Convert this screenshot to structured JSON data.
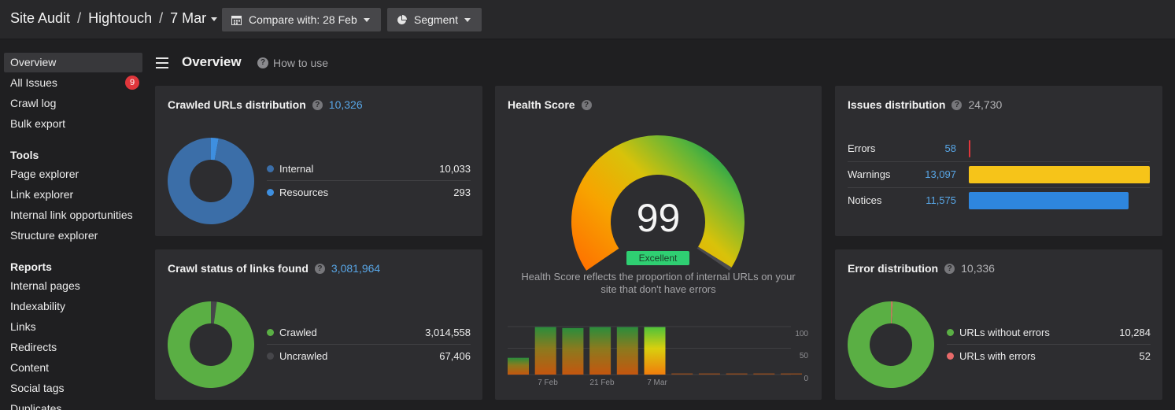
{
  "breadcrumb": {
    "site_audit": "Site Audit",
    "sep1": "/",
    "project": "Hightouch",
    "sep2": "/",
    "date": "7 Mar"
  },
  "toolbar": {
    "compare_label": "Compare with: 28 Feb",
    "segment_label": "Segment"
  },
  "sidebar": {
    "items": [
      {
        "label": "Overview",
        "active": true
      },
      {
        "label": "All Issues",
        "badge": "9"
      },
      {
        "label": "Crawl log"
      },
      {
        "label": "Bulk export"
      }
    ],
    "tools_heading": "Tools",
    "tools": [
      "Page explorer",
      "Link explorer",
      "Internal link opportunities",
      "Structure explorer"
    ],
    "reports_heading": "Reports",
    "reports": [
      "Internal pages",
      "Indexability",
      "Links",
      "Redirects",
      "Content",
      "Social tags",
      "Duplicates"
    ]
  },
  "page": {
    "title": "Overview",
    "how_to_use": "How to use"
  },
  "crawled_urls": {
    "title": "Crawled URLs distribution",
    "total": "10,326",
    "rows": [
      {
        "label": "Internal",
        "value": "10,033",
        "raw": 10033,
        "color": "#3b6ea8"
      },
      {
        "label": "Resources",
        "value": "293",
        "raw": 293,
        "color": "#3e8fe0"
      }
    ]
  },
  "crawl_status": {
    "title": "Crawl status of links found",
    "total": "3,081,964",
    "rows": [
      {
        "label": "Crawled",
        "value": "3,014,558",
        "raw": 3014558,
        "color": "#5aaf44"
      },
      {
        "label": "Uncrawled",
        "value": "67,406",
        "raw": 67406,
        "color": "#46464a"
      }
    ]
  },
  "health_score": {
    "title": "Health Score",
    "score": "99",
    "score_fraction": 0.99,
    "badge": "Excellent",
    "description_line1": "Health Score reflects the proportion of internal URLs on your",
    "description_line2": "site that don't have errors",
    "history": {
      "y_ticks": [
        "100",
        "50",
        "0"
      ],
      "x_labels": [
        "7 Feb",
        "21 Feb",
        "7 Mar"
      ],
      "values": [
        35,
        99,
        97,
        99,
        99,
        99,
        1,
        1,
        1,
        1,
        1
      ]
    }
  },
  "issues_distribution": {
    "title": "Issues distribution",
    "total": "24,730",
    "rows": [
      {
        "label": "Errors",
        "value": "58",
        "raw": 58,
        "color": "#e0363b"
      },
      {
        "label": "Warnings",
        "value": "13,097",
        "raw": 13097,
        "color": "#f6c419"
      },
      {
        "label": "Notices",
        "value": "11,575",
        "raw": 11575,
        "color": "#2e86de"
      }
    ]
  },
  "error_distribution": {
    "title": "Error distribution",
    "total": "10,336",
    "rows": [
      {
        "label": "URLs without errors",
        "value": "10,284",
        "raw": 10284,
        "color": "#5aaf44"
      },
      {
        "label": "URLs with errors",
        "value": "52",
        "raw": 52,
        "color": "#e86a6a"
      }
    ]
  }
}
